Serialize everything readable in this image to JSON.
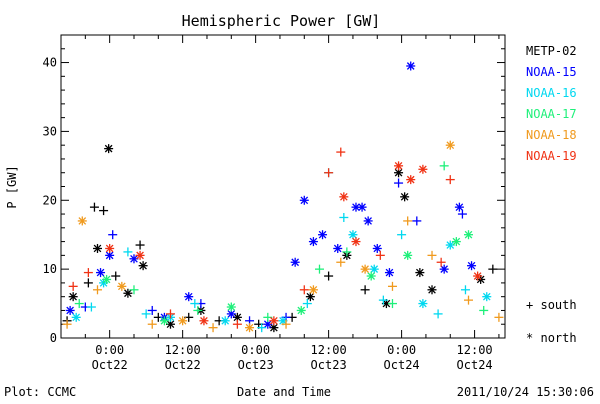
{
  "chart_data": {
    "type": "scatter",
    "title": "Hemispheric Power [GW]",
    "xlabel": "Date and Time",
    "ylabel": "P [GW]",
    "xlim": [
      "2011-10-21 16:00",
      "2011-10-24 17:00"
    ],
    "ylim": [
      0,
      44
    ],
    "y_ticks": [
      0,
      10,
      20,
      30,
      40
    ],
    "x_ticks": [
      {
        "at": "2011-10-22 00:00",
        "time": "0:00",
        "day": "Oct22"
      },
      {
        "at": "2011-10-22 12:00",
        "time": "12:00",
        "day": "Oct22"
      },
      {
        "at": "2011-10-23 00:00",
        "time": "0:00",
        "day": "Oct23"
      },
      {
        "at": "2011-10-23 12:00",
        "time": "12:00",
        "day": "Oct23"
      },
      {
        "at": "2011-10-24 00:00",
        "time": "0:00",
        "day": "Oct24"
      },
      {
        "at": "2011-10-24 12:00",
        "time": "12:00",
        "day": "Oct24"
      }
    ],
    "grid": false,
    "legend_position": "right",
    "markers": {
      "plus": "south",
      "star": "north"
    },
    "series": [
      {
        "name": "METP-02",
        "color": "#000000",
        "points": [
          {
            "x": "2011-10-21 17:00",
            "y": 2.5,
            "m": "+"
          },
          {
            "x": "2011-10-21 18:00",
            "y": 6,
            "m": "*"
          },
          {
            "x": "2011-10-21 20:30",
            "y": 8,
            "m": "+"
          },
          {
            "x": "2011-10-21 21:30",
            "y": 19,
            "m": "+"
          },
          {
            "x": "2011-10-21 22:00",
            "y": 13,
            "m": "*"
          },
          {
            "x": "2011-10-21 23:00",
            "y": 18.5,
            "m": "+"
          },
          {
            "x": "2011-10-21 23:50",
            "y": 27.5,
            "m": "*"
          },
          {
            "x": "2011-10-22 01:00",
            "y": 9,
            "m": "+"
          },
          {
            "x": "2011-10-22 03:00",
            "y": 6.5,
            "m": "*"
          },
          {
            "x": "2011-10-22 05:00",
            "y": 13.5,
            "m": "+"
          },
          {
            "x": "2011-10-22 05:30",
            "y": 10.5,
            "m": "*"
          },
          {
            "x": "2011-10-22 08:00",
            "y": 3,
            "m": "+"
          },
          {
            "x": "2011-10-22 10:00",
            "y": 2,
            "m": "*"
          },
          {
            "x": "2011-10-22 13:00",
            "y": 3,
            "m": "+"
          },
          {
            "x": "2011-10-22 15:00",
            "y": 4,
            "m": "*"
          },
          {
            "x": "2011-10-22 18:00",
            "y": 2.5,
            "m": "+"
          },
          {
            "x": "2011-10-22 21:00",
            "y": 3,
            "m": "*"
          },
          {
            "x": "2011-10-23 00:30",
            "y": 2,
            "m": "+"
          },
          {
            "x": "2011-10-23 03:00",
            "y": 1.5,
            "m": "*"
          },
          {
            "x": "2011-10-23 06:00",
            "y": 3,
            "m": "+"
          },
          {
            "x": "2011-10-23 09:00",
            "y": 6,
            "m": "*"
          },
          {
            "x": "2011-10-23 12:00",
            "y": 9,
            "m": "+"
          },
          {
            "x": "2011-10-23 15:00",
            "y": 12,
            "m": "*"
          },
          {
            "x": "2011-10-23 18:00",
            "y": 7,
            "m": "+"
          },
          {
            "x": "2011-10-23 21:30",
            "y": 5,
            "m": "*"
          },
          {
            "x": "2011-10-23 23:30",
            "y": 24,
            "m": "*"
          },
          {
            "x": "2011-10-24 00:30",
            "y": 20.5,
            "m": "*"
          },
          {
            "x": "2011-10-24 03:00",
            "y": 9.5,
            "m": "*"
          },
          {
            "x": "2011-10-24 05:00",
            "y": 7,
            "m": "*"
          },
          {
            "x": "2011-10-24 13:00",
            "y": 8.5,
            "m": "*"
          },
          {
            "x": "2011-10-24 15:00",
            "y": 10,
            "m": "+"
          }
        ]
      },
      {
        "name": "NOAA-15",
        "color": "#0000ff",
        "points": [
          {
            "x": "2011-10-21 17:30",
            "y": 4,
            "m": "*"
          },
          {
            "x": "2011-10-21 20:00",
            "y": 4.5,
            "m": "+"
          },
          {
            "x": "2011-10-21 22:30",
            "y": 9.5,
            "m": "*"
          },
          {
            "x": "2011-10-22 00:00",
            "y": 12,
            "m": "*"
          },
          {
            "x": "2011-10-22 00:30",
            "y": 15,
            "m": "+"
          },
          {
            "x": "2011-10-22 04:00",
            "y": 11.5,
            "m": "*"
          },
          {
            "x": "2011-10-22 07:00",
            "y": 4,
            "m": "+"
          },
          {
            "x": "2011-10-22 09:00",
            "y": 3,
            "m": "*"
          },
          {
            "x": "2011-10-22 13:00",
            "y": 6,
            "m": "*"
          },
          {
            "x": "2011-10-22 15:00",
            "y": 5,
            "m": "+"
          },
          {
            "x": "2011-10-22 20:00",
            "y": 3.5,
            "m": "*"
          },
          {
            "x": "2011-10-22 23:00",
            "y": 2.5,
            "m": "+"
          },
          {
            "x": "2011-10-23 02:00",
            "y": 2,
            "m": "*"
          },
          {
            "x": "2011-10-23 05:00",
            "y": 3,
            "m": "+"
          },
          {
            "x": "2011-10-23 06:30",
            "y": 11,
            "m": "*"
          },
          {
            "x": "2011-10-23 08:00",
            "y": 20,
            "m": "*"
          },
          {
            "x": "2011-10-23 09:30",
            "y": 14,
            "m": "*"
          },
          {
            "x": "2011-10-23 11:00",
            "y": 15,
            "m": "*"
          },
          {
            "x": "2011-10-23 13:30",
            "y": 13,
            "m": "*"
          },
          {
            "x": "2011-10-23 16:30",
            "y": 19,
            "m": "*"
          },
          {
            "x": "2011-10-23 17:30",
            "y": 19,
            "m": "*"
          },
          {
            "x": "2011-10-23 18:30",
            "y": 17,
            "m": "*"
          },
          {
            "x": "2011-10-23 20:00",
            "y": 13,
            "m": "*"
          },
          {
            "x": "2011-10-23 22:00",
            "y": 9.5,
            "m": "*"
          },
          {
            "x": "2011-10-23 23:30",
            "y": 22.5,
            "m": "+"
          },
          {
            "x": "2011-10-24 01:30",
            "y": 39.5,
            "m": "*"
          },
          {
            "x": "2011-10-24 02:30",
            "y": 17,
            "m": "+"
          },
          {
            "x": "2011-10-24 07:00",
            "y": 10,
            "m": "*"
          },
          {
            "x": "2011-10-24 09:30",
            "y": 19,
            "m": "*"
          },
          {
            "x": "2011-10-24 10:00",
            "y": 18,
            "m": "+"
          },
          {
            "x": "2011-10-24 11:30",
            "y": 10.5,
            "m": "*"
          }
        ]
      },
      {
        "name": "NOAA-16",
        "color": "#00d8f0",
        "points": [
          {
            "x": "2011-10-21 18:30",
            "y": 3,
            "m": "*"
          },
          {
            "x": "2011-10-21 21:00",
            "y": 4.5,
            "m": "+"
          },
          {
            "x": "2011-10-21 23:00",
            "y": 8,
            "m": "*"
          },
          {
            "x": "2011-10-22 03:00",
            "y": 12.5,
            "m": "+"
          },
          {
            "x": "2011-10-22 06:00",
            "y": 3.5,
            "m": "+"
          },
          {
            "x": "2011-10-22 10:00",
            "y": 3,
            "m": "*"
          },
          {
            "x": "2011-10-22 14:00",
            "y": 5,
            "m": "+"
          },
          {
            "x": "2011-10-22 19:00",
            "y": 2.5,
            "m": "*"
          },
          {
            "x": "2011-10-23 01:00",
            "y": 1.5,
            "m": "+"
          },
          {
            "x": "2011-10-23 04:30",
            "y": 2.5,
            "m": "*"
          },
          {
            "x": "2011-10-23 08:30",
            "y": 5,
            "m": "+"
          },
          {
            "x": "2011-10-23 12:00",
            "y": 24,
            "m": "+"
          },
          {
            "x": "2011-10-23 14:30",
            "y": 17.5,
            "m": "+"
          },
          {
            "x": "2011-10-23 16:00",
            "y": 15,
            "m": "*"
          },
          {
            "x": "2011-10-23 19:30",
            "y": 10,
            "m": "*"
          },
          {
            "x": "2011-10-23 21:00",
            "y": 5.5,
            "m": "+"
          },
          {
            "x": "2011-10-24 00:00",
            "y": 15,
            "m": "+"
          },
          {
            "x": "2011-10-24 03:30",
            "y": 5,
            "m": "*"
          },
          {
            "x": "2011-10-24 06:00",
            "y": 3.5,
            "m": "+"
          },
          {
            "x": "2011-10-24 08:00",
            "y": 13.5,
            "m": "*"
          },
          {
            "x": "2011-10-24 10:30",
            "y": 7,
            "m": "+"
          },
          {
            "x": "2011-10-24 14:00",
            "y": 6,
            "m": "*"
          }
        ]
      },
      {
        "name": "NOAA-17",
        "color": "#1ef07a",
        "points": [
          {
            "x": "2011-10-21 19:00",
            "y": 5,
            "m": "+"
          },
          {
            "x": "2011-10-21 23:30",
            "y": 8.5,
            "m": "*"
          },
          {
            "x": "2011-10-22 04:00",
            "y": 7,
            "m": "+"
          },
          {
            "x": "2011-10-22 09:00",
            "y": 2.5,
            "m": "*"
          },
          {
            "x": "2011-10-22 14:30",
            "y": 4,
            "m": "+"
          },
          {
            "x": "2011-10-22 20:00",
            "y": 4.5,
            "m": "*"
          },
          {
            "x": "2011-10-23 02:00",
            "y": 3,
            "m": "+"
          },
          {
            "x": "2011-10-23 07:30",
            "y": 4,
            "m": "*"
          },
          {
            "x": "2011-10-23 10:30",
            "y": 10,
            "m": "+"
          },
          {
            "x": "2011-10-23 15:00",
            "y": 12.5,
            "m": "+"
          },
          {
            "x": "2011-10-23 19:00",
            "y": 9,
            "m": "*"
          },
          {
            "x": "2011-10-23 22:30",
            "y": 5,
            "m": "+"
          },
          {
            "x": "2011-10-24 01:00",
            "y": 12,
            "m": "*"
          },
          {
            "x": "2011-10-24 07:00",
            "y": 25,
            "m": "+"
          },
          {
            "x": "2011-10-24 09:00",
            "y": 14,
            "m": "*"
          },
          {
            "x": "2011-10-24 11:00",
            "y": 15,
            "m": "*"
          },
          {
            "x": "2011-10-24 13:30",
            "y": 4,
            "m": "+"
          }
        ]
      },
      {
        "name": "NOAA-18",
        "color": "#f09a1e",
        "points": [
          {
            "x": "2011-10-21 17:00",
            "y": 2,
            "m": "+"
          },
          {
            "x": "2011-10-21 19:30",
            "y": 17,
            "m": "*"
          },
          {
            "x": "2011-10-21 22:00",
            "y": 7,
            "m": "+"
          },
          {
            "x": "2011-10-22 02:00",
            "y": 7.5,
            "m": "*"
          },
          {
            "x": "2011-10-22 07:00",
            "y": 2,
            "m": "+"
          },
          {
            "x": "2011-10-22 12:00",
            "y": 2.5,
            "m": "*"
          },
          {
            "x": "2011-10-22 17:00",
            "y": 1.5,
            "m": "+"
          },
          {
            "x": "2011-10-22 23:00",
            "y": 1.5,
            "m": "*"
          },
          {
            "x": "2011-10-23 05:00",
            "y": 2,
            "m": "+"
          },
          {
            "x": "2011-10-23 09:30",
            "y": 7,
            "m": "*"
          },
          {
            "x": "2011-10-23 14:00",
            "y": 11,
            "m": "+"
          },
          {
            "x": "2011-10-23 18:00",
            "y": 10,
            "m": "*"
          },
          {
            "x": "2011-10-23 22:30",
            "y": 7.5,
            "m": "+"
          },
          {
            "x": "2011-10-24 01:00",
            "y": 17,
            "m": "+"
          },
          {
            "x": "2011-10-24 05:00",
            "y": 12,
            "m": "+"
          },
          {
            "x": "2011-10-24 08:00",
            "y": 28,
            "m": "*"
          },
          {
            "x": "2011-10-24 11:00",
            "y": 5.5,
            "m": "+"
          },
          {
            "x": "2011-10-24 16:00",
            "y": 3,
            "m": "+"
          }
        ]
      },
      {
        "name": "NOAA-19",
        "color": "#f03214",
        "points": [
          {
            "x": "2011-10-21 18:00",
            "y": 7.5,
            "m": "+"
          },
          {
            "x": "2011-10-21 20:30",
            "y": 9.5,
            "m": "+"
          },
          {
            "x": "2011-10-22 00:00",
            "y": 13,
            "m": "*"
          },
          {
            "x": "2011-10-22 05:00",
            "y": 12,
            "m": "*"
          },
          {
            "x": "2011-10-22 10:00",
            "y": 3.5,
            "m": "+"
          },
          {
            "x": "2011-10-22 15:30",
            "y": 2.5,
            "m": "*"
          },
          {
            "x": "2011-10-22 21:00",
            "y": 2,
            "m": "+"
          },
          {
            "x": "2011-10-23 03:00",
            "y": 2.5,
            "m": "*"
          },
          {
            "x": "2011-10-23 08:00",
            "y": 7,
            "m": "+"
          },
          {
            "x": "2011-10-23 12:00",
            "y": 24,
            "m": "+"
          },
          {
            "x": "2011-10-23 14:00",
            "y": 27,
            "m": "+"
          },
          {
            "x": "2011-10-23 14:30",
            "y": 20.5,
            "m": "*"
          },
          {
            "x": "2011-10-23 16:30",
            "y": 14,
            "m": "*"
          },
          {
            "x": "2011-10-23 20:30",
            "y": 12,
            "m": "+"
          },
          {
            "x": "2011-10-23 23:30",
            "y": 25,
            "m": "*"
          },
          {
            "x": "2011-10-24 01:30",
            "y": 23,
            "m": "*"
          },
          {
            "x": "2011-10-24 03:30",
            "y": 24.5,
            "m": "*"
          },
          {
            "x": "2011-10-24 06:30",
            "y": 11,
            "m": "+"
          },
          {
            "x": "2011-10-24 08:00",
            "y": 23,
            "m": "+"
          },
          {
            "x": "2011-10-24 12:30",
            "y": 9,
            "m": "*"
          }
        ]
      }
    ]
  },
  "footer": {
    "left": "Plot: CCMC",
    "center": "Date and Time",
    "right": "2011/10/24 15:30:06"
  },
  "marker_key": {
    "south_symbol": "+",
    "south_label": "south",
    "north_symbol": "*",
    "north_label": "north"
  }
}
